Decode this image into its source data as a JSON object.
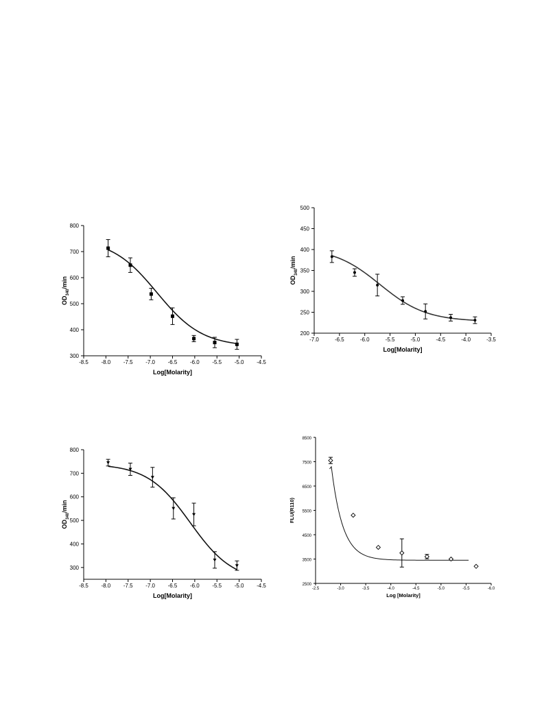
{
  "chart_data": [
    {
      "type": "scatter",
      "xlabel": "Log[Molarity]",
      "ylabel": "OD340/min",
      "ylabel_main": "OD",
      "ylabel_sub": "340",
      "ylabel_tail": "/min",
      "xlim": [
        -8.5,
        -4.5
      ],
      "ylim": [
        300,
        800
      ],
      "xticks": [
        "-8.5",
        "-8.0",
        "-7.5",
        "-7.0",
        "-6.5",
        "-6.0",
        "-5.5",
        "-5.0",
        "-4.5"
      ],
      "yticks": [
        "300",
        "400",
        "500",
        "600",
        "700",
        "800"
      ],
      "series": [
        {
          "x": [
            -7.95,
            -7.45,
            -6.98,
            -6.5,
            -6.02,
            -5.55,
            -5.05
          ],
          "y": [
            713,
            648,
            537,
            452,
            366,
            351,
            344
          ],
          "err": [
            33,
            28,
            22,
            32,
            12,
            20,
            19
          ],
          "marker": "square",
          "fit": {
            "top": 750,
            "bottom": 335,
            "logec50": -6.85,
            "hill": 0.85
          }
        }
      ]
    },
    {
      "type": "scatter",
      "xlabel": "Log[Molarity]",
      "ylabel": "OD340/min",
      "ylabel_main": "OD",
      "ylabel_sub": "340",
      "ylabel_tail": "/min",
      "xlim": [
        -7.0,
        -3.5
      ],
      "ylim": [
        200,
        500
      ],
      "xticks": [
        "-7.0",
        "-6.5",
        "-6.0",
        "-5.5",
        "-5.0",
        "-4.5",
        "-4.0",
        "-3.5"
      ],
      "yticks": [
        "200",
        "250",
        "300",
        "350",
        "400",
        "450",
        "500"
      ],
      "series": [
        {
          "x": [
            -6.65,
            -6.2,
            -5.75,
            -5.25,
            -4.8,
            -4.3,
            -3.82
          ],
          "y": [
            383,
            345,
            315,
            278,
            252,
            237,
            231
          ],
          "err": [
            14,
            9,
            26,
            9,
            18,
            8,
            8
          ],
          "marker": "dot",
          "fit": {
            "top": 405,
            "bottom": 228,
            "logec50": -5.7,
            "hill": 0.95
          }
        }
      ]
    },
    {
      "type": "scatter",
      "xlabel": "Log[Molarity]",
      "ylabel": "OD340/min",
      "ylabel_main": "OD",
      "ylabel_sub": "340",
      "ylabel_tail": "/min",
      "xlim": [
        -8.5,
        -4.5
      ],
      "ylim": [
        250,
        800
      ],
      "xticks": [
        "-8.5",
        "-8.0",
        "-7.5",
        "-7.0",
        "-6.5",
        "-6.0",
        "-5.5",
        "-5.0",
        "-4.5"
      ],
      "yticks": [
        "300",
        "400",
        "500",
        "600",
        "700",
        "800"
      ],
      "series": [
        {
          "x": [
            -7.95,
            -7.45,
            -6.95,
            -6.48,
            -6.02,
            -5.55,
            -5.05
          ],
          "y": [
            745,
            717,
            683,
            551,
            525,
            332,
            308
          ],
          "err": [
            14,
            26,
            42,
            45,
            48,
            35,
            20
          ],
          "marker": "triangle",
          "fit": {
            "top": 740,
            "bottom": 240,
            "logec50": -6.1,
            "hill": 0.9
          }
        }
      ]
    },
    {
      "type": "scatter",
      "xlabel": "Log [Molarity]",
      "ylabel": "FLU(R110)",
      "xlim": [
        -2.5,
        -6.0
      ],
      "ylim": [
        2500,
        8500
      ],
      "xticks": [
        "-2.5",
        "-3.0",
        "-3.5",
        "-4.0",
        "-4.5",
        "-5.0",
        "-5.5",
        "-6.0"
      ],
      "yticks": [
        "2500",
        "3500",
        "4500",
        "5500",
        "6500",
        "7500",
        "8500"
      ],
      "series": [
        {
          "x": [
            -2.8,
            -3.25,
            -3.75,
            -4.22,
            -4.72,
            -5.2,
            -5.7
          ],
          "y": [
            7550,
            5300,
            3980,
            3750,
            3600,
            3500,
            3200
          ],
          "err": [
            130,
            0,
            0,
            580,
            90,
            0,
            0
          ],
          "marker": "diamond",
          "fit": {
            "type": "exp",
            "plateau": 3450,
            "amp": 4100,
            "x0": -2.8,
            "k": 4.4,
            "xstart": -2.78,
            "xend": -5.55
          }
        }
      ]
    }
  ]
}
